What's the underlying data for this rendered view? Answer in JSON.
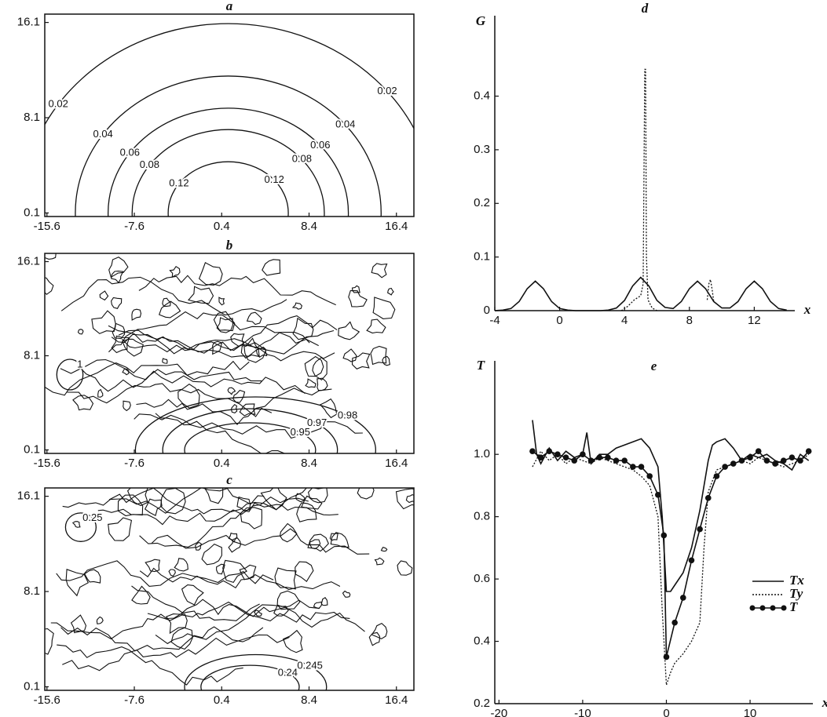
{
  "chart_data": [
    {
      "type": "contour",
      "title": "a",
      "xlim": [
        -15.8,
        18
      ],
      "ylim": [
        -0.2,
        16.8
      ],
      "xticks": [
        -15.6,
        -7.6,
        0.4,
        8.4,
        16.4
      ],
      "yticks": [
        0.1,
        8.1,
        16.1
      ],
      "contours": [
        {
          "level": 0.02,
          "cx": 1,
          "cy": 0.1,
          "rx": 19,
          "ry": 15.9
        },
        {
          "level": 0.04,
          "cx": 1,
          "cy": 0.1,
          "rx": 14,
          "ry": 11.5
        },
        {
          "level": 0.06,
          "cx": 1,
          "cy": 0.1,
          "rx": 11,
          "ry": 8.8
        },
        {
          "level": 0.08,
          "cx": 1,
          "cy": 0.1,
          "rx": 8.8,
          "ry": 7
        },
        {
          "level": 0.12,
          "cx": 1,
          "cy": 0.1,
          "rx": 5.5,
          "ry": 4.3
        }
      ]
    },
    {
      "type": "contour",
      "title": "b",
      "xlim": [
        -15.8,
        18
      ],
      "ylim": [
        -0.2,
        16.8
      ],
      "xticks": [
        -15.6,
        -7.6,
        0.4,
        8.4,
        16.4
      ],
      "yticks": [
        0.1,
        8.1,
        16.1
      ],
      "contours": [
        {
          "level": 0.95,
          "cx": 3,
          "cy": 0.1,
          "rx": 6,
          "ry": 2.3
        },
        {
          "level": 0.97,
          "cx": 3,
          "cy": 0.1,
          "rx": 8,
          "ry": 3.5
        },
        {
          "level": 0.98,
          "cx": 3.5,
          "cy": 0.1,
          "rx": 11,
          "ry": 4.5
        },
        {
          "level": 1,
          "cx": -13.5,
          "cy": 6.5,
          "rx": 1.2,
          "ry": 1.3
        }
      ]
    },
    {
      "type": "contour",
      "title": "c",
      "xlim": [
        -15.8,
        18
      ],
      "ylim": [
        -0.2,
        16.8
      ],
      "xticks": [
        -15.6,
        -7.6,
        0.4,
        8.4,
        16.4
      ],
      "yticks": [
        0.1,
        8.1,
        16.1
      ],
      "contours": [
        {
          "level": 0.24,
          "cx": 3,
          "cy": 0.1,
          "rx": 4.5,
          "ry": 1.8
        },
        {
          "level": 0.245,
          "cx": 3.5,
          "cy": 0.1,
          "rx": 6.5,
          "ry": 2.7
        },
        {
          "level": 0.25,
          "cx": -12.5,
          "cy": 13.5,
          "rx": 1.4,
          "ry": 1.2
        }
      ]
    },
    {
      "type": "line",
      "title": "d",
      "y_label": "G",
      "x_label": "x",
      "xlim": [
        -4,
        14.5
      ],
      "ylim": [
        0,
        0.55
      ],
      "xticks": [
        -4,
        0,
        4,
        8,
        12
      ],
      "yticks": [
        0,
        0.1,
        0.2,
        0.3,
        0.4
      ],
      "series": [
        {
          "style": "solid",
          "color": "#111",
          "x": [
            -4,
            -3.5,
            -3,
            -2.5,
            -2,
            -1.5,
            -1,
            -0.5,
            0,
            0.5,
            1,
            1.5,
            2,
            2.5,
            3,
            3.5,
            4,
            4.5,
            5,
            5.5,
            6,
            6.5,
            7,
            7.5,
            8,
            8.5,
            9,
            9.5,
            10,
            10.5,
            11,
            11.5,
            12,
            12.5,
            13,
            13.5,
            14
          ],
          "values": [
            0,
            0.001,
            0.004,
            0.017,
            0.041,
            0.055,
            0.041,
            0.017,
            0.004,
            0.001,
            0,
            0,
            0,
            0,
            0.001,
            0.005,
            0.019,
            0.046,
            0.062,
            0.046,
            0.019,
            0.006,
            0.004,
            0.017,
            0.041,
            0.055,
            0.041,
            0.017,
            0.005,
            0.005,
            0.017,
            0.041,
            0.055,
            0.041,
            0.017,
            0.004,
            0.001
          ]
        },
        {
          "style": "dotted",
          "color": "#111",
          "x": [
            3.8,
            4.2,
            4.6,
            5,
            5.15,
            5.25,
            5.3,
            5.35,
            5.45,
            5.7,
            6,
            7.5,
            9.1,
            9.2,
            9.3,
            9.4,
            9.5
          ],
          "values": [
            0,
            0.008,
            0.02,
            0.028,
            0.05,
            0.45,
            0.45,
            0.1,
            0.02,
            0.005,
            0,
            null,
            0.02,
            0.05,
            0.058,
            0.04,
            0.017
          ]
        }
      ]
    },
    {
      "type": "line",
      "title": "e",
      "y_label": "T",
      "x_label": "x",
      "legend": "lower right",
      "xlim": [
        -20.5,
        17.5
      ],
      "ylim": [
        0.2,
        1.3
      ],
      "xticks": [
        -20,
        -10,
        0,
        10
      ],
      "yticks": [
        0.2,
        0.4,
        0.6,
        0.8,
        {
          "value": 1,
          "label": "1.0"
        }
      ],
      "series": [
        {
          "name": "Tx",
          "style": "solid",
          "color": "#111",
          "x": [
            -16,
            -15.5,
            -15,
            -14,
            -13,
            -12,
            -11,
            -10,
            -9.5,
            -9,
            -8,
            -7,
            -6,
            -5,
            -4,
            -3,
            -2,
            -1,
            -0.5,
            0,
            0.5,
            1,
            2,
            3,
            4,
            5,
            5.5,
            6,
            7,
            8,
            9,
            10,
            11,
            12,
            13,
            14,
            15,
            16,
            17
          ],
          "values": [
            1.11,
            1.0,
            0.97,
            1.02,
            0.98,
            1.01,
            0.99,
            1.0,
            1.07,
            0.97,
            1.0,
            1.0,
            1.02,
            1.03,
            1.04,
            1.05,
            1.02,
            0.96,
            0.8,
            0.56,
            0.56,
            0.58,
            0.62,
            0.7,
            0.82,
            0.98,
            1.03,
            1.04,
            1.05,
            1.02,
            0.98,
            1.0,
            0.99,
            1.0,
            0.98,
            0.97,
            0.95,
            1.0,
            0.98
          ]
        },
        {
          "name": "Ty",
          "style": "dotted",
          "color": "#111",
          "x": [
            -16,
            -15,
            -14,
            -13,
            -12,
            -11,
            -10,
            -9,
            -8,
            -7,
            -6,
            -5,
            -4,
            -3,
            -2,
            -1,
            -0.5,
            0,
            0.5,
            1,
            2,
            3,
            4,
            4.5,
            5,
            6,
            7,
            8,
            9,
            10,
            11,
            12,
            13,
            14,
            15,
            16,
            17
          ],
          "values": [
            0.96,
            1.01,
            0.98,
            1.0,
            0.97,
            0.99,
            0.98,
            0.97,
            0.99,
            0.98,
            0.97,
            0.96,
            0.95,
            0.93,
            0.9,
            0.8,
            0.5,
            0.26,
            0.3,
            0.33,
            0.36,
            0.4,
            0.46,
            0.7,
            0.88,
            0.95,
            0.96,
            0.97,
            0.98,
            0.97,
            0.99,
            0.98,
            0.97,
            0.96,
            0.97,
            0.98,
            1.0
          ]
        },
        {
          "name": "T",
          "style": "solid",
          "markers": true,
          "color": "#111",
          "x": [
            -16,
            -15,
            -14,
            -13,
            -12,
            -11,
            -10,
            -9,
            -8,
            -7,
            -6,
            -5,
            -4,
            -3,
            -2,
            -1,
            -0.3,
            0,
            1,
            2,
            3,
            4,
            5,
            6,
            7,
            8,
            9,
            10,
            11,
            12,
            13,
            14,
            15,
            16,
            17
          ],
          "values": [
            1.01,
            0.99,
            1.01,
            1.0,
            0.99,
            0.98,
            1.0,
            0.98,
            0.99,
            0.99,
            0.98,
            0.98,
            0.96,
            0.96,
            0.93,
            0.87,
            0.74,
            0.35,
            0.46,
            0.54,
            0.66,
            0.76,
            0.86,
            0.93,
            0.96,
            0.97,
            0.98,
            0.99,
            1.01,
            0.98,
            0.97,
            0.98,
            0.99,
            0.98,
            1.01
          ]
        }
      ]
    }
  ]
}
